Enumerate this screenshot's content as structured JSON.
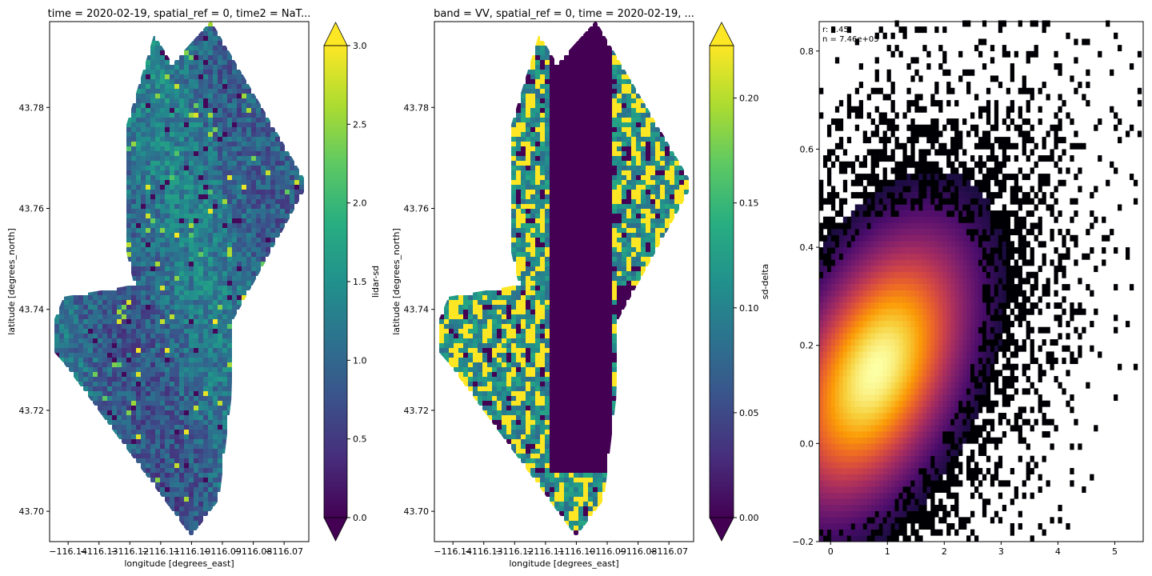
{
  "chart_data": [
    {
      "type": "heatmap",
      "title": "time = 2020-02-19, spatial_ref = 0, time2 = NaT...",
      "xlabel": "longitude [degrees_east]",
      "ylabel": "latitude [degrees_north]",
      "xlim": [
        -116.146,
        -116.062
      ],
      "ylim": [
        43.694,
        43.797
      ],
      "x_ticks": [
        -116.14,
        -116.13,
        -116.12,
        -116.11,
        -116.1,
        -116.09,
        -116.08,
        -116.07
      ],
      "x_tick_labels": [
        "−116.14",
        "−116.13",
        "−116.12",
        "−116.11",
        "−116.10",
        "−116.09",
        "−116.08",
        "−116.07"
      ],
      "y_ticks": [
        43.7,
        43.72,
        43.74,
        43.76,
        43.78
      ],
      "y_tick_labels": [
        "43.70",
        "43.72",
        "43.74",
        "43.76",
        "43.78"
      ],
      "colormap": "viridis",
      "colorbar": {
        "label": "lidar-sd",
        "range": [
          0,
          3
        ],
        "ticks": [
          0.0,
          0.5,
          1.0,
          1.5,
          2.0,
          2.5,
          3.0
        ],
        "tick_labels": [
          "0.0",
          "0.5",
          "1.0",
          "1.5",
          "2.0",
          "2.5",
          "3.0"
        ],
        "extend": "both"
      },
      "field_pattern": "speckle",
      "field_mean": 0.32,
      "grid": false
    },
    {
      "type": "heatmap",
      "title": "band = VV, spatial_ref = 0, time = 2020-02-19, ...",
      "xlabel": "longitude [degrees_east]",
      "ylabel": "latitude [degrees_north]",
      "xlim": [
        -116.146,
        -116.062
      ],
      "ylim": [
        43.694,
        43.797
      ],
      "x_ticks": [
        -116.14,
        -116.13,
        -116.12,
        -116.11,
        -116.1,
        -116.09,
        -116.08,
        -116.07
      ],
      "x_tick_labels": [
        "−116.14",
        "−116.13",
        "−116.12",
        "−116.11",
        "−116.10",
        "−116.09",
        "−116.08",
        "−116.07"
      ],
      "y_ticks": [
        43.7,
        43.72,
        43.74,
        43.76,
        43.78
      ],
      "y_tick_labels": [
        "43.70",
        "43.72",
        "43.74",
        "43.76",
        "43.78"
      ],
      "colormap": "viridis",
      "colorbar": {
        "label": "sd-delta",
        "range": [
          0,
          0.225
        ],
        "ticks": [
          0.0,
          0.05,
          0.1,
          0.15,
          0.2
        ],
        "tick_labels": [
          "0.00",
          "0.05",
          "0.10",
          "0.15",
          "0.20"
        ],
        "extend": "both"
      },
      "field_pattern": "patches",
      "grid": false
    },
    {
      "type": "heatmap",
      "subtype": "2d-histogram",
      "title": "",
      "xlabel": "",
      "ylabel": "",
      "xlim": [
        -0.2,
        5.5
      ],
      "ylim": [
        -0.2,
        0.86
      ],
      "x_ticks": [
        0,
        1,
        2,
        3,
        4,
        5
      ],
      "x_tick_labels": [
        "0",
        "1",
        "2",
        "3",
        "4",
        "5"
      ],
      "y_ticks": [
        -0.2,
        0.0,
        0.2,
        0.4,
        0.6,
        0.8
      ],
      "y_tick_labels": [
        "−0.2",
        "0.0",
        "0.2",
        "0.4",
        "0.6",
        "0.8"
      ],
      "colormap": "inferno",
      "density_center": [
        0.8,
        0.15
      ],
      "density_spread": [
        0.8,
        0.14
      ],
      "correlation": 0.45,
      "annotations": [
        "r: 0.45",
        "n = 7.46e+05"
      ],
      "grid": false
    }
  ]
}
